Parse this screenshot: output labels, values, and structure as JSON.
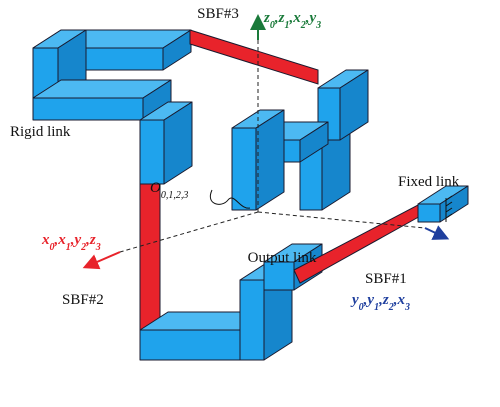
{
  "labels": {
    "sbf3": "SBF#3",
    "rigid_link": "Rigid link",
    "fixed_link": "Fixed link",
    "output_link": "Output link",
    "sbf1": "SBF#1",
    "sbf2": "SBF#2"
  },
  "origin": {
    "base": "O",
    "sub": "0,1,2,3"
  },
  "axes": [
    {
      "color": "#1a7a3a",
      "separator": ",",
      "terms": [
        {
          "base": "z",
          "sub": "0"
        },
        {
          "base": "z",
          "sub": "1"
        },
        {
          "base": "x",
          "sub": "2"
        },
        {
          "base": "y",
          "sub": "3"
        }
      ]
    },
    {
      "color": "#e8232b",
      "separator": ",",
      "terms": [
        {
          "base": "x",
          "sub": "0"
        },
        {
          "base": "x",
          "sub": "1"
        },
        {
          "base": "y",
          "sub": "2"
        },
        {
          "base": "z",
          "sub": "3"
        }
      ]
    },
    {
      "color": "#1f3f9e",
      "separator": ",",
      "terms": [
        {
          "base": "y",
          "sub": "0"
        },
        {
          "base": "y",
          "sub": "1"
        },
        {
          "base": "z",
          "sub": "2"
        },
        {
          "base": "x",
          "sub": "3"
        }
      ]
    }
  ]
}
